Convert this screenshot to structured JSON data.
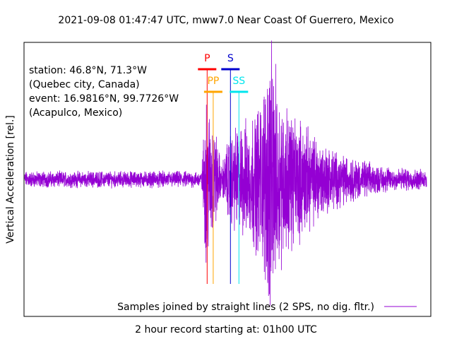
{
  "chart_data": {
    "type": "line",
    "title": "2021-09-08 01:47:47 UTC, mww7.0 Near Coast Of Guerrero, Mexico",
    "xlabel": "2 hour record starting at: 01h00 UTC",
    "ylabel": "Vertical Acceleration [rel.]",
    "grid": false,
    "legend_position": "bottom-right",
    "series": [
      {
        "name": "Samples joined by straight lines (2 SPS, no dig. fltr.)",
        "color": "#9400d3",
        "envelope": [
          {
            "t": 0.0,
            "amp": 0.06
          },
          {
            "t": 0.44,
            "amp": 0.06
          },
          {
            "t": 0.45,
            "amp": 0.6
          },
          {
            "t": 0.47,
            "amp": 0.45
          },
          {
            "t": 0.49,
            "amp": 0.1
          },
          {
            "t": 0.51,
            "amp": 0.35
          },
          {
            "t": 0.56,
            "amp": 0.45
          },
          {
            "t": 0.59,
            "amp": 0.6
          },
          {
            "t": 0.61,
            "amp": 1.0
          },
          {
            "t": 0.64,
            "amp": 0.6
          },
          {
            "t": 0.7,
            "amp": 0.38
          },
          {
            "t": 0.78,
            "amp": 0.2
          },
          {
            "t": 0.88,
            "amp": 0.1
          },
          {
            "t": 1.0,
            "amp": 0.07
          }
        ]
      }
    ],
    "phases": [
      {
        "label": "P",
        "color": "#ff0000",
        "t": 0.454,
        "row": 0
      },
      {
        "label": "PP",
        "color": "#ffa500",
        "t": 0.469,
        "row": 1
      },
      {
        "label": "S",
        "color": "#0000cd",
        "t": 0.512,
        "row": 0
      },
      {
        "label": "SS",
        "color": "#00e5ee",
        "t": 0.533,
        "row": 1
      }
    ],
    "annotations": [
      "station: 46.8°N, 71.3°W",
      "(Quebec city, Canada)",
      "event: 16.9816°N, 99.7726°W",
      "(Acapulco, Mexico)"
    ]
  }
}
